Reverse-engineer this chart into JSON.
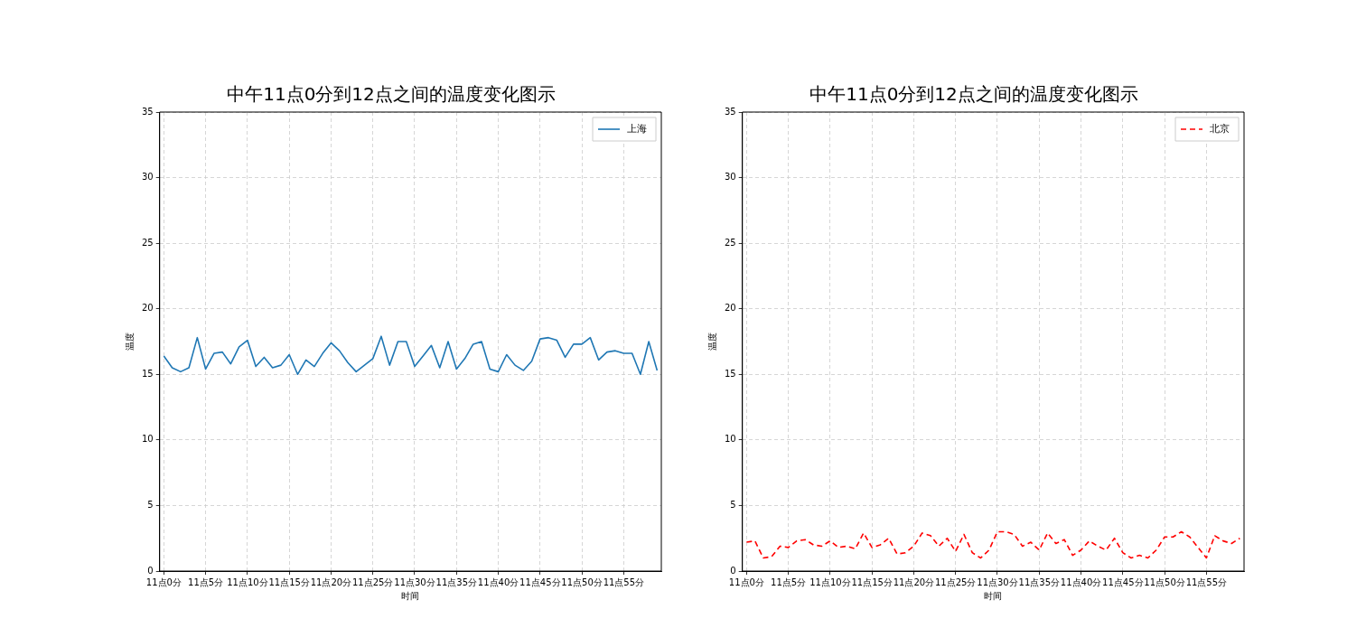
{
  "chart_data": [
    {
      "type": "line",
      "title": "中午11点0分到12点之间的温度变化图示",
      "xlabel": "时间",
      "ylabel": "温度",
      "categories": [
        "11点0分",
        null,
        null,
        null,
        null,
        "11点5分",
        null,
        null,
        null,
        null,
        "11点10分",
        null,
        null,
        null,
        null,
        "11点15分",
        null,
        null,
        null,
        null,
        "11点20分",
        null,
        null,
        null,
        null,
        "11点25分",
        null,
        null,
        null,
        null,
        "11点30分",
        null,
        null,
        null,
        null,
        "11点35分",
        null,
        null,
        null,
        null,
        "11点40分",
        null,
        null,
        null,
        null,
        "11点45分",
        null,
        null,
        null,
        null,
        "11点50分",
        null,
        null,
        null,
        null,
        "11点55分",
        null,
        null,
        null,
        null
      ],
      "series": [
        {
          "name": "上海",
          "color": "#1f77b4",
          "line_style": "solid",
          "values": [
            16.4,
            15.5,
            15.2,
            15.5,
            17.8,
            15.4,
            16.6,
            16.7,
            15.8,
            17.1,
            17.6,
            15.6,
            16.3,
            15.5,
            15.7,
            16.5,
            15.0,
            16.1,
            15.6,
            16.6,
            17.4,
            16.8,
            15.9,
            15.2,
            15.7,
            16.2,
            17.9,
            15.7,
            17.5,
            17.5,
            15.6,
            16.4,
            17.2,
            15.5,
            17.5,
            15.4,
            16.2,
            17.3,
            17.5,
            15.4,
            15.2,
            16.5,
            15.7,
            15.3,
            16.0,
            17.7,
            17.8,
            17.6,
            16.3,
            17.3,
            17.3,
            17.8,
            16.1,
            16.7,
            16.8,
            16.6,
            16.6,
            15.0,
            17.5,
            15.3
          ]
        }
      ],
      "ylim": [
        0,
        35
      ],
      "yticks": [
        0,
        5,
        10,
        15,
        20,
        25,
        30,
        35
      ],
      "grid": true,
      "legend": "top right"
    },
    {
      "type": "line",
      "title": "中午11点0分到12点之间的温度变化图示",
      "xlabel": "时间",
      "ylabel": "温度",
      "categories": [
        "11点0分",
        null,
        null,
        null,
        null,
        "11点5分",
        null,
        null,
        null,
        null,
        "11点10分",
        null,
        null,
        null,
        null,
        "11点15分",
        null,
        null,
        null,
        null,
        "11点20分",
        null,
        null,
        null,
        null,
        "11点25分",
        null,
        null,
        null,
        null,
        "11点30分",
        null,
        null,
        null,
        null,
        "11点35分",
        null,
        null,
        null,
        null,
        "11点40分",
        null,
        null,
        null,
        null,
        "11点45分",
        null,
        null,
        null,
        null,
        "11点50分",
        null,
        null,
        null,
        null,
        "11点55分",
        null,
        null,
        null,
        null
      ],
      "series": [
        {
          "name": "北京",
          "color": "#ff0000",
          "line_style": "dashed",
          "values": [
            2.2,
            2.3,
            1.0,
            1.1,
            1.9,
            1.8,
            2.3,
            2.4,
            2.0,
            1.9,
            2.3,
            1.8,
            1.9,
            1.7,
            2.9,
            1.8,
            2.0,
            2.5,
            1.3,
            1.4,
            1.9,
            2.9,
            2.7,
            1.9,
            2.5,
            1.5,
            2.8,
            1.4,
            1.0,
            1.6,
            3.0,
            3.0,
            2.8,
            1.9,
            2.2,
            1.6,
            2.9,
            2.1,
            2.4,
            1.2,
            1.6,
            2.3,
            1.9,
            1.6,
            2.5,
            1.4,
            1.0,
            1.2,
            1.0,
            1.6,
            2.6,
            2.6,
            3.0,
            2.6,
            1.8,
            1.0,
            2.7,
            2.3,
            2.1,
            2.5
          ]
        }
      ],
      "ylim": [
        0,
        35
      ],
      "yticks": [
        0,
        5,
        10,
        15,
        20,
        25,
        30,
        35
      ],
      "grid": true,
      "legend": "top right"
    }
  ]
}
